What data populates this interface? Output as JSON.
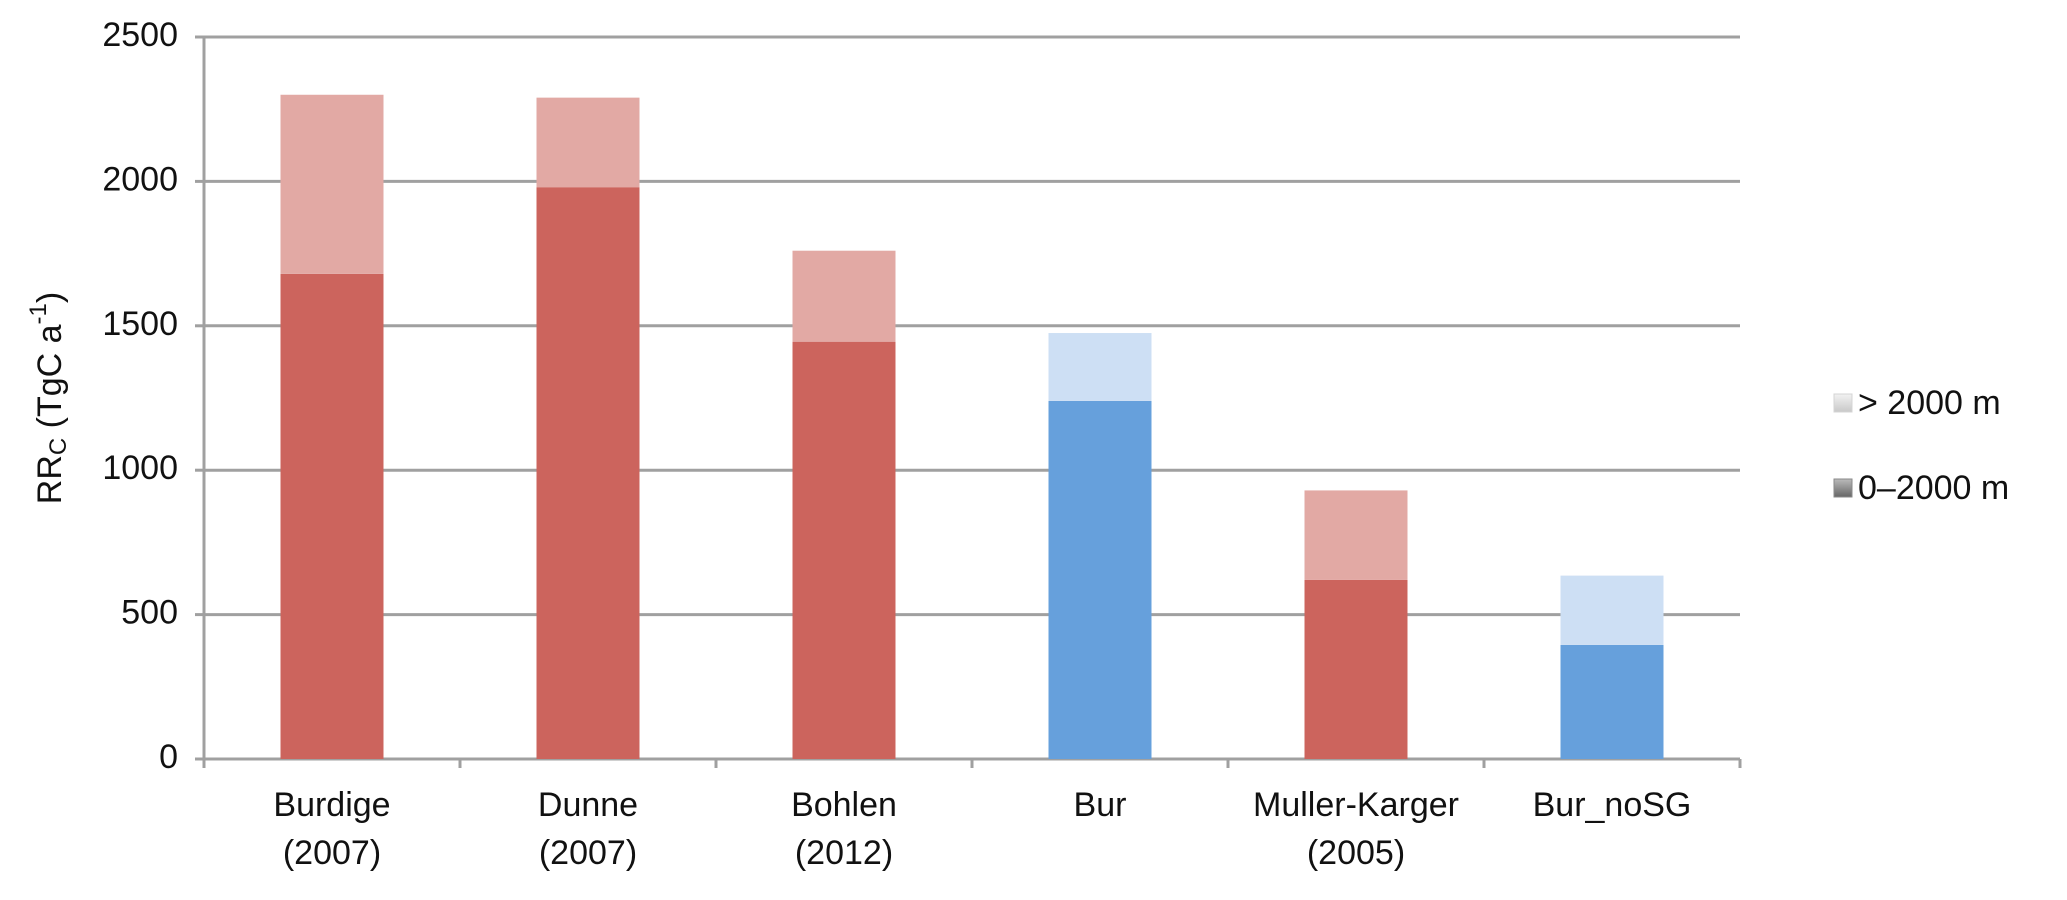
{
  "chart_data": {
    "type": "stacked_bar",
    "ylabel_parts": [
      "RR",
      "C",
      " (TgC a",
      "-1",
      ")"
    ],
    "categories": [
      "Burdige\n(2007)",
      "Dunne\n(2007)",
      "Bohlen\n(2012)",
      "Bur",
      "Muller-Karger\n(2005)",
      "Bur_noSG"
    ],
    "series": [
      {
        "name": "0–2000 m",
        "color": "#8a8a8a",
        "colors": [
          "#cc645d",
          "#cc645d",
          "#cc645d",
          "#66a0dc",
          "#cc645d",
          "#66a0dc"
        ],
        "values": [
          1680,
          1980,
          1445,
          1240,
          620,
          395
        ]
      },
      {
        "name": "> 2000 m",
        "color": "#d4d4d4",
        "colors": [
          "#e2a9a4",
          "#e2a9a4",
          "#e2a9a4",
          "#cddff4",
          "#e2a9a4",
          "#cddff4"
        ],
        "values": [
          620,
          310,
          315,
          235,
          310,
          240
        ]
      }
    ],
    "ylim": [
      0,
      2500
    ],
    "yticks": [
      0,
      500,
      1000,
      1500,
      2000,
      2500
    ],
    "grid": true,
    "legend": "right"
  }
}
